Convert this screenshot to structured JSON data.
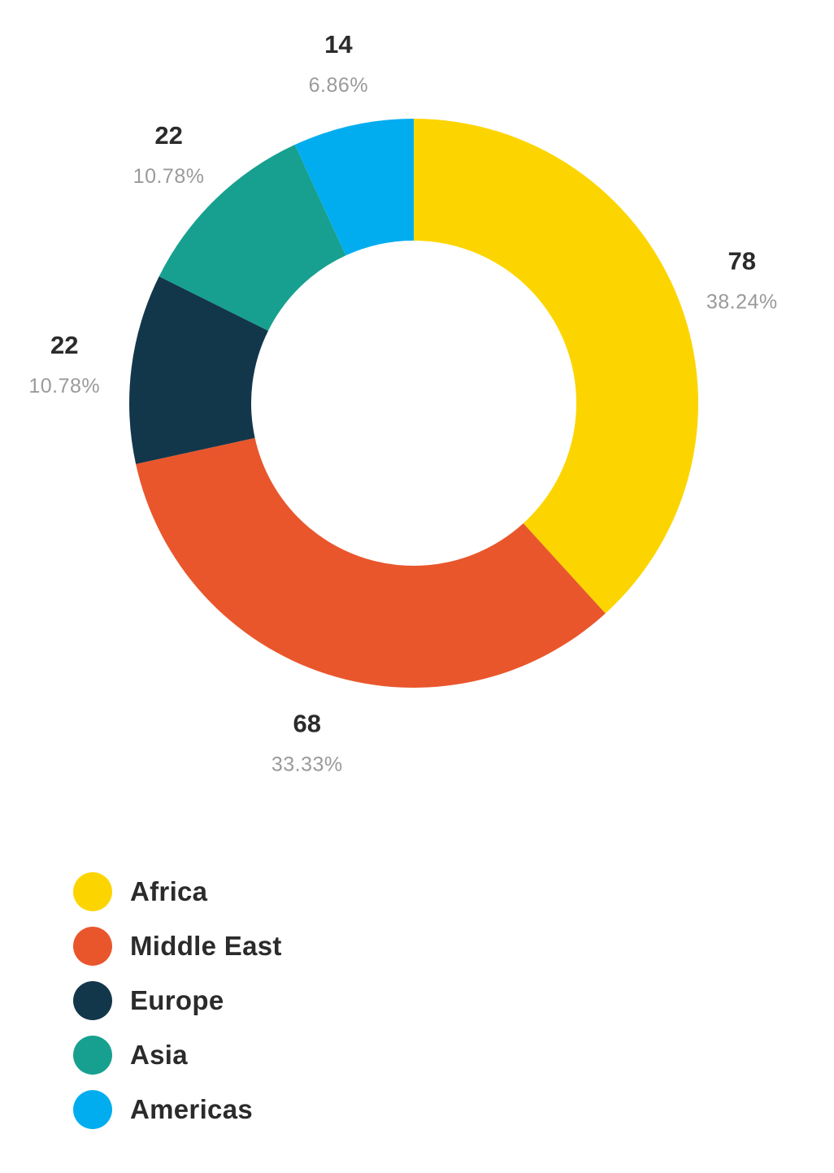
{
  "chart_data": {
    "type": "pie",
    "donut": true,
    "legend_position": "bottom-left",
    "slices": [
      {
        "label": "Africa",
        "value": 78,
        "percent": "38.24%",
        "color": "#FCD500"
      },
      {
        "label": "Middle East",
        "value": 68,
        "percent": "33.33%",
        "color": "#E9562C"
      },
      {
        "label": "Europe",
        "value": 22,
        "percent": "10.78%",
        "color": "#13374A"
      },
      {
        "label": "Asia",
        "value": 22,
        "percent": "10.78%",
        "color": "#17A08F"
      },
      {
        "label": "Americas",
        "value": 14,
        "percent": "6.86%",
        "color": "#02ADEF"
      }
    ]
  }
}
